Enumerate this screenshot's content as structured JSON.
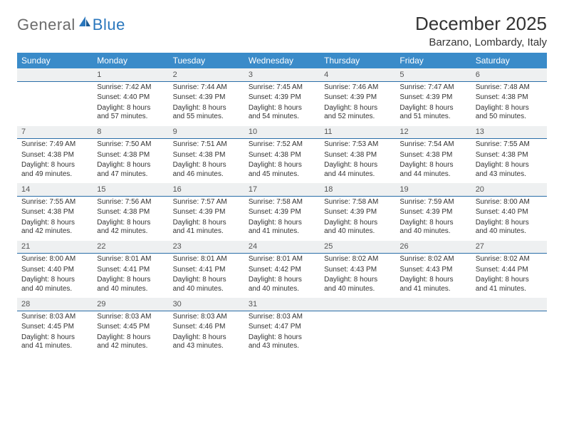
{
  "brand": {
    "part1": "General",
    "part2": "Blue"
  },
  "title": "December 2025",
  "location": "Barzano, Lombardy, Italy",
  "colors": {
    "header_bg": "#3a8bc9",
    "header_text": "#ffffff",
    "daynum_bg": "#eef0f1",
    "daynum_border": "#2a6ea8",
    "text": "#333333",
    "logo_gray": "#6b6b6b",
    "logo_blue": "#2a77bd"
  },
  "dow": [
    "Sunday",
    "Monday",
    "Tuesday",
    "Wednesday",
    "Thursday",
    "Friday",
    "Saturday"
  ],
  "weeks": [
    [
      {
        "n": "",
        "sr": "",
        "ss": "",
        "dl": ""
      },
      {
        "n": "1",
        "sr": "Sunrise: 7:42 AM",
        "ss": "Sunset: 4:40 PM",
        "dl": "Daylight: 8 hours and 57 minutes."
      },
      {
        "n": "2",
        "sr": "Sunrise: 7:44 AM",
        "ss": "Sunset: 4:39 PM",
        "dl": "Daylight: 8 hours and 55 minutes."
      },
      {
        "n": "3",
        "sr": "Sunrise: 7:45 AM",
        "ss": "Sunset: 4:39 PM",
        "dl": "Daylight: 8 hours and 54 minutes."
      },
      {
        "n": "4",
        "sr": "Sunrise: 7:46 AM",
        "ss": "Sunset: 4:39 PM",
        "dl": "Daylight: 8 hours and 52 minutes."
      },
      {
        "n": "5",
        "sr": "Sunrise: 7:47 AM",
        "ss": "Sunset: 4:39 PM",
        "dl": "Daylight: 8 hours and 51 minutes."
      },
      {
        "n": "6",
        "sr": "Sunrise: 7:48 AM",
        "ss": "Sunset: 4:38 PM",
        "dl": "Daylight: 8 hours and 50 minutes."
      }
    ],
    [
      {
        "n": "7",
        "sr": "Sunrise: 7:49 AM",
        "ss": "Sunset: 4:38 PM",
        "dl": "Daylight: 8 hours and 49 minutes."
      },
      {
        "n": "8",
        "sr": "Sunrise: 7:50 AM",
        "ss": "Sunset: 4:38 PM",
        "dl": "Daylight: 8 hours and 47 minutes."
      },
      {
        "n": "9",
        "sr": "Sunrise: 7:51 AM",
        "ss": "Sunset: 4:38 PM",
        "dl": "Daylight: 8 hours and 46 minutes."
      },
      {
        "n": "10",
        "sr": "Sunrise: 7:52 AM",
        "ss": "Sunset: 4:38 PM",
        "dl": "Daylight: 8 hours and 45 minutes."
      },
      {
        "n": "11",
        "sr": "Sunrise: 7:53 AM",
        "ss": "Sunset: 4:38 PM",
        "dl": "Daylight: 8 hours and 44 minutes."
      },
      {
        "n": "12",
        "sr": "Sunrise: 7:54 AM",
        "ss": "Sunset: 4:38 PM",
        "dl": "Daylight: 8 hours and 44 minutes."
      },
      {
        "n": "13",
        "sr": "Sunrise: 7:55 AM",
        "ss": "Sunset: 4:38 PM",
        "dl": "Daylight: 8 hours and 43 minutes."
      }
    ],
    [
      {
        "n": "14",
        "sr": "Sunrise: 7:55 AM",
        "ss": "Sunset: 4:38 PM",
        "dl": "Daylight: 8 hours and 42 minutes."
      },
      {
        "n": "15",
        "sr": "Sunrise: 7:56 AM",
        "ss": "Sunset: 4:38 PM",
        "dl": "Daylight: 8 hours and 42 minutes."
      },
      {
        "n": "16",
        "sr": "Sunrise: 7:57 AM",
        "ss": "Sunset: 4:39 PM",
        "dl": "Daylight: 8 hours and 41 minutes."
      },
      {
        "n": "17",
        "sr": "Sunrise: 7:58 AM",
        "ss": "Sunset: 4:39 PM",
        "dl": "Daylight: 8 hours and 41 minutes."
      },
      {
        "n": "18",
        "sr": "Sunrise: 7:58 AM",
        "ss": "Sunset: 4:39 PM",
        "dl": "Daylight: 8 hours and 40 minutes."
      },
      {
        "n": "19",
        "sr": "Sunrise: 7:59 AM",
        "ss": "Sunset: 4:39 PM",
        "dl": "Daylight: 8 hours and 40 minutes."
      },
      {
        "n": "20",
        "sr": "Sunrise: 8:00 AM",
        "ss": "Sunset: 4:40 PM",
        "dl": "Daylight: 8 hours and 40 minutes."
      }
    ],
    [
      {
        "n": "21",
        "sr": "Sunrise: 8:00 AM",
        "ss": "Sunset: 4:40 PM",
        "dl": "Daylight: 8 hours and 40 minutes."
      },
      {
        "n": "22",
        "sr": "Sunrise: 8:01 AM",
        "ss": "Sunset: 4:41 PM",
        "dl": "Daylight: 8 hours and 40 minutes."
      },
      {
        "n": "23",
        "sr": "Sunrise: 8:01 AM",
        "ss": "Sunset: 4:41 PM",
        "dl": "Daylight: 8 hours and 40 minutes."
      },
      {
        "n": "24",
        "sr": "Sunrise: 8:01 AM",
        "ss": "Sunset: 4:42 PM",
        "dl": "Daylight: 8 hours and 40 minutes."
      },
      {
        "n": "25",
        "sr": "Sunrise: 8:02 AM",
        "ss": "Sunset: 4:43 PM",
        "dl": "Daylight: 8 hours and 40 minutes."
      },
      {
        "n": "26",
        "sr": "Sunrise: 8:02 AM",
        "ss": "Sunset: 4:43 PM",
        "dl": "Daylight: 8 hours and 41 minutes."
      },
      {
        "n": "27",
        "sr": "Sunrise: 8:02 AM",
        "ss": "Sunset: 4:44 PM",
        "dl": "Daylight: 8 hours and 41 minutes."
      }
    ],
    [
      {
        "n": "28",
        "sr": "Sunrise: 8:03 AM",
        "ss": "Sunset: 4:45 PM",
        "dl": "Daylight: 8 hours and 41 minutes."
      },
      {
        "n": "29",
        "sr": "Sunrise: 8:03 AM",
        "ss": "Sunset: 4:45 PM",
        "dl": "Daylight: 8 hours and 42 minutes."
      },
      {
        "n": "30",
        "sr": "Sunrise: 8:03 AM",
        "ss": "Sunset: 4:46 PM",
        "dl": "Daylight: 8 hours and 43 minutes."
      },
      {
        "n": "31",
        "sr": "Sunrise: 8:03 AM",
        "ss": "Sunset: 4:47 PM",
        "dl": "Daylight: 8 hours and 43 minutes."
      },
      {
        "n": "",
        "sr": "",
        "ss": "",
        "dl": ""
      },
      {
        "n": "",
        "sr": "",
        "ss": "",
        "dl": ""
      },
      {
        "n": "",
        "sr": "",
        "ss": "",
        "dl": ""
      }
    ]
  ]
}
